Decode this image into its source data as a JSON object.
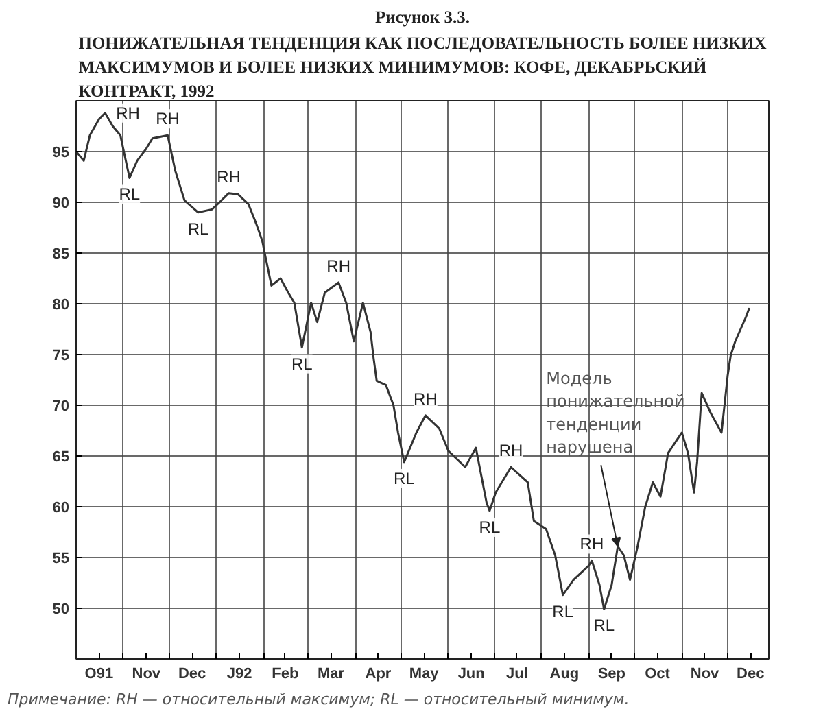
{
  "chart_data": {
    "type": "line",
    "title": "Рисунок 3.3.",
    "subtitle": "ПОНИЖАТЕЛЬНАЯ ТЕНДЕНЦИЯ КАК ПОСЛЕДОВАТЕЛЬНОСТЬ БОЛЕЕ НИЗКИХ МАКСИМУМОВ И БОЛЕЕ НИЗКИХ МИНИМУМОВ: КОФЕ, ДЕКАБРЬСКИЙ КОНТРАКТ, 1992",
    "x": [
      "1991-10-01",
      "1991-10-06",
      "1991-10-10",
      "1991-10-16",
      "1991-10-20",
      "1991-10-25",
      "1991-10-30",
      "1991-11-05",
      "1991-11-10",
      "1991-11-16",
      "1991-11-20",
      "1991-11-30",
      "1991-12-05",
      "1991-12-11",
      "1991-12-20",
      "1991-12-29",
      "1992-01-03",
      "1992-01-09",
      "1992-01-15",
      "1992-01-22",
      "1992-01-27",
      "1992-01-31",
      "1992-02-02",
      "1992-02-06",
      "1992-02-12",
      "1992-02-17",
      "1992-02-21",
      "1992-02-26",
      "1992-03-03",
      "1992-03-07",
      "1992-03-12",
      "1992-03-21",
      "1992-03-26",
      "1992-03-31",
      "1992-04-06",
      "1992-04-11",
      "1992-04-13",
      "1992-04-15",
      "1992-04-21",
      "1992-04-26",
      "1992-04-29",
      "1992-05-03",
      "1992-05-11",
      "1992-05-17",
      "1992-05-26",
      "1992-06-01",
      "1992-06-12",
      "1992-06-19",
      "1992-06-26",
      "1992-06-28",
      "1992-07-02",
      "1992-07-12",
      "1992-07-23",
      "1992-07-27",
      "1992-08-04",
      "1992-08-10",
      "1992-08-15",
      "1992-08-22",
      "1992-09-01",
      "1992-09-03",
      "1992-09-08",
      "1992-09-11",
      "1992-09-16",
      "1992-09-20",
      "1992-09-24",
      "1992-09-28",
      "1992-10-03",
      "1992-10-08",
      "1992-10-13",
      "1992-10-18",
      "1992-10-23",
      "1992-11-01",
      "1992-11-05",
      "1992-11-09",
      "1992-11-11",
      "1992-11-14",
      "1992-11-20",
      "1992-11-27",
      "1992-12-01",
      "1992-12-03",
      "1992-12-06",
      "1992-12-13",
      "1992-12-15"
    ],
    "series": [
      {
        "color": "#333333",
        "values": [
          95,
          94.1,
          96.6,
          98.2,
          98.8,
          97.5,
          96.6,
          92.4,
          94.1,
          95.3,
          96.3,
          96.6,
          93.1,
          90.2,
          89,
          89.3,
          90,
          90.9,
          90.8,
          89.8,
          87.9,
          86.2,
          84.7,
          81.8,
          82.5,
          81.1,
          80.1,
          75.7,
          80.1,
          78.2,
          81.1,
          82.1,
          80.1,
          76.3,
          80.1,
          77.2,
          74.6,
          72.4,
          72,
          70,
          67.3,
          64.4,
          67.3,
          69,
          67.7,
          65.5,
          63.9,
          65.8,
          60.4,
          59.6,
          61.4,
          63.9,
          62.4,
          58.6,
          57.8,
          55.2,
          51.3,
          52.8,
          54.2,
          54.7,
          52.3,
          49.9,
          52.3,
          56.1,
          55.2,
          52.8,
          56.1,
          60,
          62.4,
          61,
          65.3,
          67.3,
          65.3,
          61.4,
          64.4,
          71.2,
          69.2,
          67.3,
          72.9,
          74.9,
          76.3,
          78.7,
          79.5
        ]
      }
    ],
    "xlim": [
      "1991-10-01",
      "1992-12-28"
    ],
    "xticks": [
      {
        "value": "1991-10-01",
        "label": null
      },
      {
        "value": "1991-10-16",
        "label": "O91"
      },
      {
        "value": "1991-11-01",
        "label": null
      },
      {
        "value": "1991-11-16",
        "label": "Nov"
      },
      {
        "value": "1991-12-01",
        "label": null
      },
      {
        "value": "1991-12-16",
        "label": "Dec"
      },
      {
        "value": "1992-01-01",
        "label": null
      },
      {
        "value": "1992-01-16",
        "label": "J92"
      },
      {
        "value": "1992-02-01",
        "label": null
      },
      {
        "value": "1992-02-15",
        "label": "Feb"
      },
      {
        "value": "1992-03-01",
        "label": null
      },
      {
        "value": "1992-03-16",
        "label": "Mar"
      },
      {
        "value": "1992-04-01",
        "label": null
      },
      {
        "value": "1992-04-16",
        "label": "Apr"
      },
      {
        "value": "1992-05-01",
        "label": null
      },
      {
        "value": "1992-05-16",
        "label": "May"
      },
      {
        "value": "1992-06-01",
        "label": null
      },
      {
        "value": "1992-06-16",
        "label": "Jun"
      },
      {
        "value": "1992-07-01",
        "label": null
      },
      {
        "value": "1992-07-16",
        "label": "Jul"
      },
      {
        "value": "1992-08-01",
        "label": null
      },
      {
        "value": "1992-08-16",
        "label": "Aug"
      },
      {
        "value": "1992-09-01",
        "label": null
      },
      {
        "value": "1992-09-16",
        "label": "Sep"
      },
      {
        "value": "1992-10-01",
        "label": null
      },
      {
        "value": "1992-10-16",
        "label": "Oct"
      },
      {
        "value": "1992-11-01",
        "label": null
      },
      {
        "value": "1992-11-16",
        "label": "Nov"
      },
      {
        "value": "1992-12-01",
        "label": null
      },
      {
        "value": "1992-12-16",
        "label": "Dec"
      }
    ],
    "ylim": [
      45,
      100
    ],
    "yticks": [
      50,
      55,
      60,
      65,
      70,
      75,
      80,
      85,
      90,
      95
    ],
    "grid": true,
    "annotations": [
      {
        "text": "RH",
        "x": "1991-10-20",
        "y": 98.8
      },
      {
        "text": "RH",
        "x": "1991-11-30",
        "y": 96.6
      },
      {
        "text": "RL",
        "x": "1991-11-05",
        "y": 92.4
      },
      {
        "text": "RL",
        "x": "1991-12-20",
        "y": 89
      },
      {
        "text": "RH",
        "x": "1992-01-09",
        "y": 90.9
      },
      {
        "text": "RH",
        "x": "1992-03-21",
        "y": 82.1
      },
      {
        "text": "RL",
        "x": "1992-02-26",
        "y": 75.7
      },
      {
        "text": "RH",
        "x": "1992-05-17",
        "y": 69
      },
      {
        "text": "RL",
        "x": "1992-05-03",
        "y": 64.4
      },
      {
        "text": "RH",
        "x": "1992-07-12",
        "y": 63.9
      },
      {
        "text": "RL",
        "x": "1992-06-28",
        "y": 59.6
      },
      {
        "text": "RH",
        "x": "1992-09-03",
        "y": 54.7
      },
      {
        "text": "RL",
        "x": "1992-08-15",
        "y": 51.3
      },
      {
        "text": "RL",
        "x": "1992-09-11",
        "y": 49.9
      },
      {
        "text": "Модель понижательной тенденции нарушена",
        "x": "1992-09-20",
        "y": 56.1
      },
      "Примечание: RH — относительный максимум; RL — относительный минимум."
    ]
  }
}
